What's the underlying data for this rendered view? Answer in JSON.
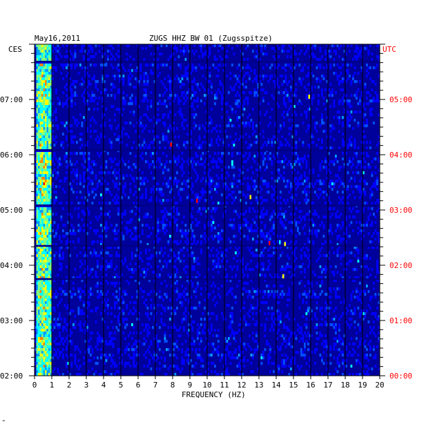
{
  "header": {
    "date": "May16,2011",
    "station": "ZUGS HHZ BW 01 (Zugsspitze)",
    "left_tz": "CES",
    "right_tz": "UTC"
  },
  "footer": {
    "mark": "\""
  },
  "chart_data": {
    "type": "heatmap",
    "title": "ZUGS HHZ BW 01 (Zugsspitze)",
    "xlabel": "FREQUENCY (HZ)",
    "xlim": [
      0,
      20
    ],
    "x_ticks": [
      "0",
      "1",
      "2",
      "3",
      "4",
      "5",
      "6",
      "7",
      "8",
      "9",
      "10",
      "11",
      "12",
      "13",
      "14",
      "15",
      "16",
      "17",
      "18",
      "19",
      "20"
    ],
    "left_time_zone": "CES",
    "right_time_zone": "UTC",
    "left_time_labels": [
      "07:00",
      "06:00",
      "05:00",
      "04:00",
      "03:00",
      "02:00"
    ],
    "right_time_labels": [
      "05:00",
      "04:00",
      "03:00",
      "02:00",
      "01:00",
      "00:00"
    ],
    "time_range_CES": [
      "02:00",
      "08:00"
    ],
    "time_range_UTC": [
      "00:00",
      "06:00"
    ],
    "color_scale": [
      "#00008b",
      "#0000ff",
      "#0050ff",
      "#00a0ff",
      "#00ffff",
      "#80ff80",
      "#ffff00",
      "#ff8000",
      "#ff0000"
    ],
    "colors": {
      "background": "#00009a",
      "grid": "#000000",
      "left_labels": "#000000",
      "right_labels": "#ff0000"
    },
    "energy_band_hz": [
      0.1,
      1.0
    ],
    "quiet_bands_CES": [
      "07:42",
      "07:40",
      "06:06",
      "06:04",
      "05:06",
      "05:04",
      "04:22",
      "04:20",
      "03:46",
      "03:44"
    ],
    "spikes": [
      {
        "freq_hz": 13.6,
        "time_CES": "04:24",
        "color": "#ff0000"
      },
      {
        "freq_hz": 14.2,
        "time_CES": "04:25",
        "color": "#00ffff"
      },
      {
        "freq_hz": 14.5,
        "time_CES": "04:23",
        "color": "#ffff00"
      },
      {
        "freq_hz": 7.9,
        "time_CES": "06:11",
        "color": "#ff0000"
      },
      {
        "freq_hz": 14.4,
        "time_CES": "03:48",
        "color": "#ffff00"
      },
      {
        "freq_hz": 15.9,
        "time_CES": "07:03",
        "color": "#ffff00"
      },
      {
        "freq_hz": 9.4,
        "time_CES": "05:10",
        "color": "#ff0000"
      },
      {
        "freq_hz": 12.5,
        "time_CES": "05:14",
        "color": "#ffff00"
      }
    ]
  }
}
